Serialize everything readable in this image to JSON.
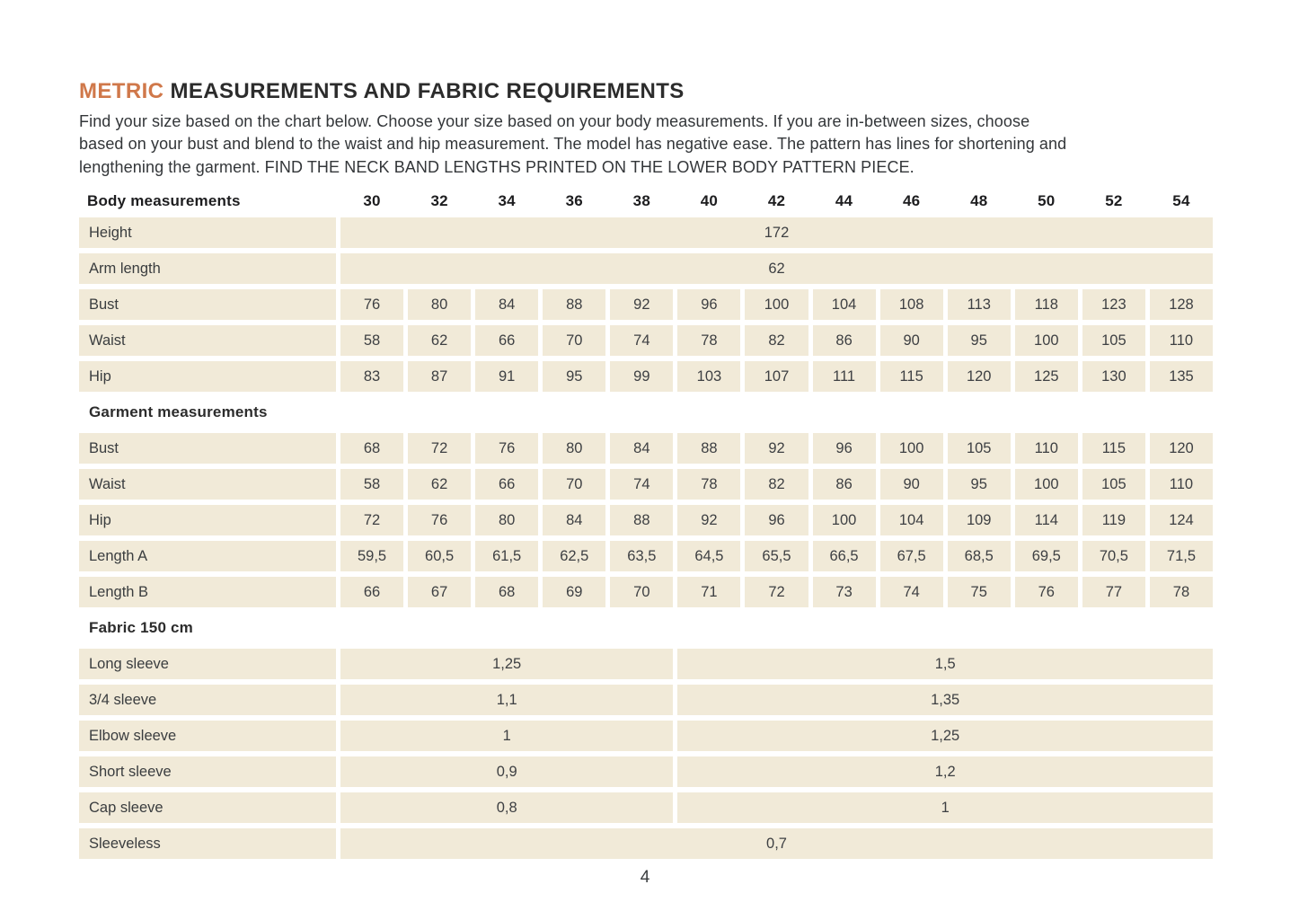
{
  "page": {
    "title_accent": "METRIC",
    "title_rest": "MEASUREMENTS AND FABRIC REQUIREMENTS",
    "intro_lines": [
      "Find your size based on the chart below. Choose your size based on your body measurements. If you are in-between sizes, choose",
      "based on your bust and blend to the waist and hip measurement. The model has negative ease. The pattern has lines for shortening and",
      "lengthening the garment. FIND THE NECK BAND LENGTHS PRINTED ON THE LOWER BODY PATTERN PIECE."
    ],
    "page_number": "4"
  },
  "colors": {
    "accent_orange": "#d0784a",
    "cell_beige": "#f1ead8",
    "heading_dark": "#2c2c2c"
  },
  "table": {
    "header": {
      "label": "Body measurements",
      "sizes": [
        "30",
        "32",
        "34",
        "36",
        "38",
        "40",
        "42",
        "44",
        "46",
        "48",
        "50",
        "52",
        "54"
      ]
    },
    "body_rows": [
      {
        "label": "Height",
        "span_all": "172"
      },
      {
        "label": "Arm length",
        "span_all": "62"
      },
      {
        "label": "Bust",
        "values": [
          "76",
          "80",
          "84",
          "88",
          "92",
          "96",
          "100",
          "104",
          "108",
          "113",
          "118",
          "123",
          "128"
        ]
      },
      {
        "label": "Waist",
        "values": [
          "58",
          "62",
          "66",
          "70",
          "74",
          "78",
          "82",
          "86",
          "90",
          "95",
          "100",
          "105",
          "110"
        ]
      },
      {
        "label": "Hip",
        "values": [
          "83",
          "87",
          "91",
          "95",
          "99",
          "103",
          "107",
          "111",
          "115",
          "120",
          "125",
          "130",
          "135"
        ]
      }
    ],
    "garment_section_label": "Garment measurements",
    "garment_rows": [
      {
        "label": "Bust",
        "values": [
          "68",
          "72",
          "76",
          "80",
          "84",
          "88",
          "92",
          "96",
          "100",
          "105",
          "110",
          "115",
          "120"
        ]
      },
      {
        "label": "Waist",
        "values": [
          "58",
          "62",
          "66",
          "70",
          "74",
          "78",
          "82",
          "86",
          "90",
          "95",
          "100",
          "105",
          "110"
        ]
      },
      {
        "label": "Hip",
        "values": [
          "72",
          "76",
          "80",
          "84",
          "88",
          "92",
          "96",
          "100",
          "104",
          "109",
          "114",
          "119",
          "124"
        ]
      },
      {
        "label": "Length A",
        "values": [
          "59,5",
          "60,5",
          "61,5",
          "62,5",
          "63,5",
          "64,5",
          "65,5",
          "66,5",
          "67,5",
          "68,5",
          "69,5",
          "70,5",
          "71,5"
        ]
      },
      {
        "label": "Length B",
        "values": [
          "66",
          "67",
          "68",
          "69",
          "70",
          "71",
          "72",
          "73",
          "74",
          "75",
          "76",
          "77",
          "78"
        ]
      }
    ],
    "fabric_section_label": "Fabric 150 cm",
    "fabric_rows": [
      {
        "label": "Long sleeve",
        "left": "1,25",
        "right": "1,5"
      },
      {
        "label": "3/4 sleeve",
        "left": "1,1",
        "right": "1,35"
      },
      {
        "label": "Elbow sleeve",
        "left": "1",
        "right": "1,25"
      },
      {
        "label": "Short sleeve",
        "left": "0,9",
        "right": "1,2"
      },
      {
        "label": "Cap sleeve",
        "left": "0,8",
        "right": "1"
      },
      {
        "label": "Sleeveless",
        "span_all": "0,7"
      }
    ]
  }
}
